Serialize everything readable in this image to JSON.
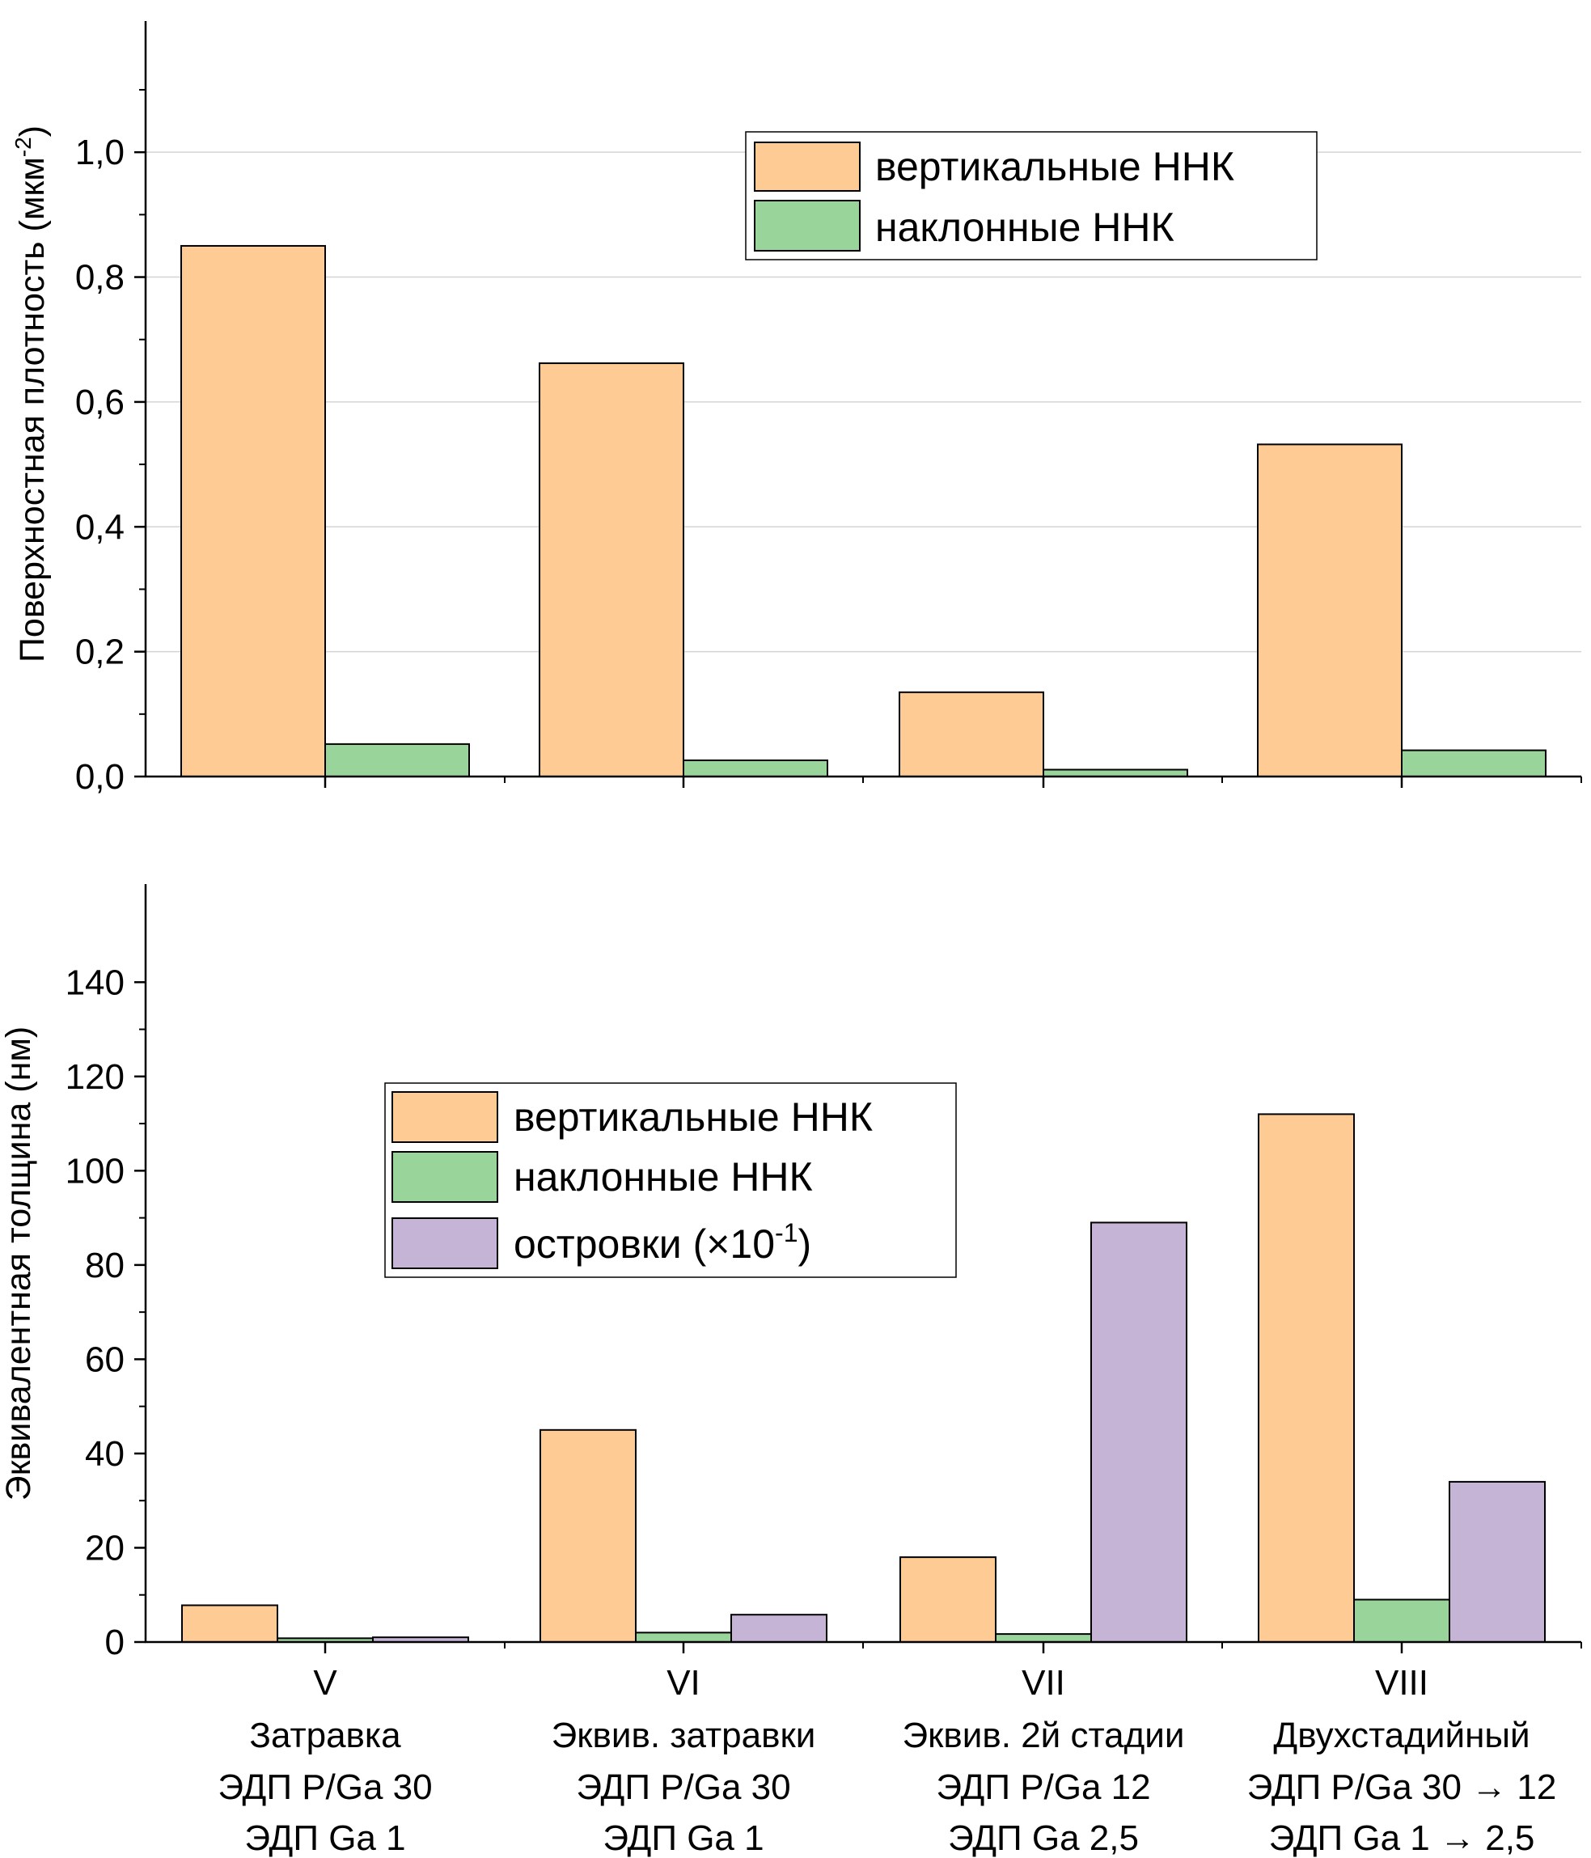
{
  "colors": {
    "vertical": "#fdcb93",
    "inclined": "#99d49b",
    "islands": "#c6b4d7",
    "grid": "#d4d4d4",
    "axis": "#000000"
  },
  "category_labels": [
    {
      "id": "V",
      "line1": "Затравка",
      "line2": "ЭДП P/Ga 30",
      "line3": "ЭДП Ga 1"
    },
    {
      "id": "VI",
      "line1": "Эквив. затравки",
      "line2": "ЭДП P/Ga 30",
      "line3": "ЭДП Ga 1"
    },
    {
      "id": "VII",
      "line1": "Эквив. 2й стадии",
      "line2": "ЭДП P/Ga 12",
      "line3": "ЭДП Ga 2,5"
    },
    {
      "id": "VIII",
      "line1": "Двухстадийный",
      "line2": "ЭДП P/Ga 30 → 12",
      "line3": "ЭДП Ga 1 → 2,5"
    }
  ],
  "top_chart": {
    "ylabel_main": "Поверхностная плотность (мкм",
    "ylabel_sup": "-2",
    "ylabel_close": ")",
    "tick_labels": [
      "0,0",
      "0,2",
      "0,4",
      "0,6",
      "0,8",
      "1,0"
    ],
    "legend": [
      {
        "label": "вертикальные ННК",
        "color_key": "vertical"
      },
      {
        "label": "наклонные ННК",
        "color_key": "inclined"
      }
    ]
  },
  "bottom_chart": {
    "ylabel": "Эквивалентная толщина (нм)",
    "tick_labels": [
      "0",
      "20",
      "40",
      "60",
      "80",
      "100",
      "120",
      "140"
    ],
    "legend": [
      {
        "label": "вертикальные ННК",
        "color_key": "vertical"
      },
      {
        "label": "наклонные ННК",
        "color_key": "inclined"
      },
      {
        "label_main": "островки (×10",
        "label_sup": "-1",
        "label_close": ")",
        "color_key": "islands"
      }
    ]
  },
  "chart_data": [
    {
      "type": "bar",
      "categories": [
        "V",
        "VI",
        "VII",
        "VIII"
      ],
      "ylabel": "Поверхностная плотность (мкм-2)",
      "ylim": [
        0,
        1.1
      ],
      "yticks": [
        0,
        0.2,
        0.4,
        0.6,
        0.8,
        1.0
      ],
      "grid": true,
      "legend_position": "top-right",
      "series": [
        {
          "name": "вертикальные ННК",
          "values": [
            0.85,
            0.662,
            0.135,
            0.532
          ]
        },
        {
          "name": "наклонные ННК",
          "values": [
            0.052,
            0.026,
            0.011,
            0.042
          ]
        }
      ]
    },
    {
      "type": "bar",
      "categories": [
        "V",
        "VI",
        "VII",
        "VIII"
      ],
      "ylabel": "Эквивалентная толщина (нм)",
      "ylim": [
        0,
        150
      ],
      "yticks": [
        0,
        20,
        40,
        60,
        80,
        100,
        120,
        140
      ],
      "grid": false,
      "legend_position": "center-left",
      "series": [
        {
          "name": "вертикальные ННК",
          "values": [
            7.8,
            45,
            18,
            112
          ]
        },
        {
          "name": "наклонные ННК",
          "values": [
            0.8,
            2,
            1.7,
            9
          ]
        },
        {
          "name": "островки (×10-1)",
          "values": [
            1,
            5.8,
            89,
            34
          ]
        }
      ]
    }
  ]
}
